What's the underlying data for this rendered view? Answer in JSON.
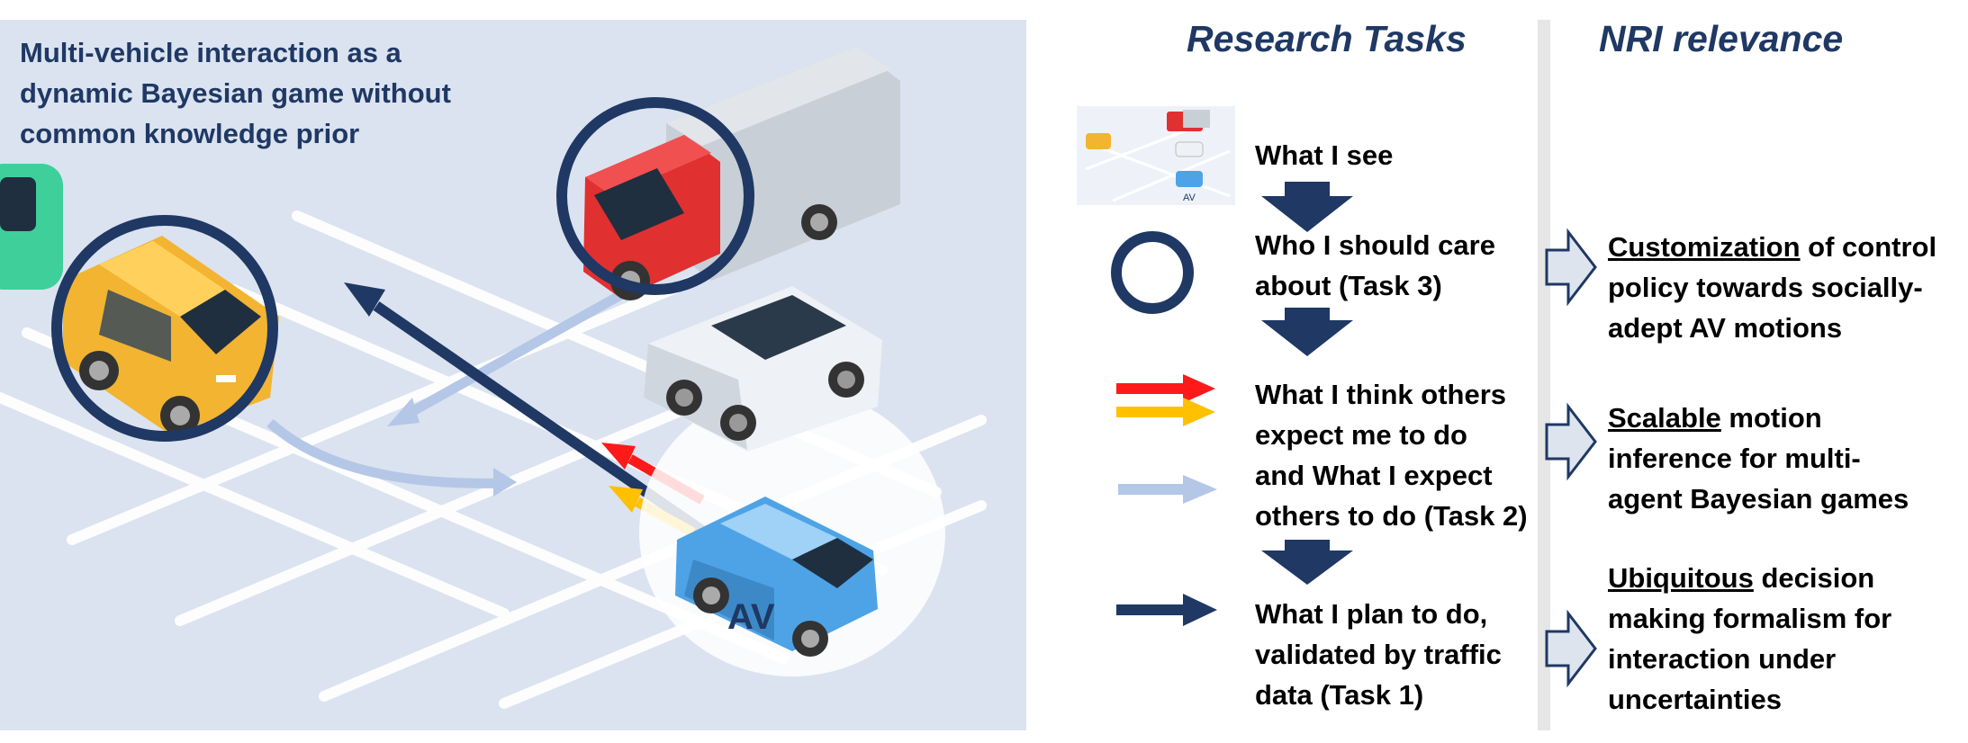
{
  "scene": {
    "title_line1": "Multi-vehicle interaction as a",
    "title_line2": "dynamic Bayesian game without",
    "title_line3": "common knowledge prior",
    "av_label": "AV",
    "colors": {
      "background": "#dbe3f0",
      "accent": "#1f3864",
      "red": "#ff1a1a",
      "yellow": "#ffc000",
      "light_blue": "#b4c7e7"
    }
  },
  "headers": {
    "research_tasks": "Research Tasks",
    "nri_relevance": "NRI relevance"
  },
  "tasks": [
    {
      "lines": [
        "What I see"
      ]
    },
    {
      "lines": [
        "Who I should care",
        "about (Task 3)"
      ]
    },
    {
      "lines": [
        "What I think others",
        "expect me to do",
        "and What I expect",
        "others to do (Task 2)"
      ]
    },
    {
      "lines": [
        "What I plan to do,",
        "validated by traffic",
        "data (Task 1)"
      ]
    }
  ],
  "thumbnail": {
    "av_label": "AV"
  },
  "nri": [
    {
      "underlined": "Customization",
      "rest_line1": " of control",
      "line2": "policy towards socially-",
      "line3": "adept AV motions"
    },
    {
      "underlined": "Scalable",
      "rest_line1": " motion",
      "line2": "inference for multi-",
      "line3": "agent Bayesian games"
    },
    {
      "underlined": "Ubiquitous",
      "rest_line1": " decision",
      "line2": "making formalism for",
      "line3": "interaction under",
      "line4": "uncertainties"
    }
  ]
}
